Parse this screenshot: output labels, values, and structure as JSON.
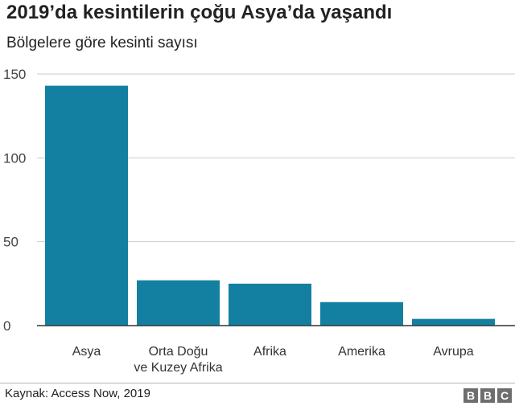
{
  "header": {
    "title": "2019’da kesintilerin çoğu Asya’da yaşandı",
    "subtitle": "Bölgelere göre kesinti sayısı"
  },
  "footer": {
    "source": "Kaynak: Access Now, 2019",
    "logo_letters": [
      "B",
      "B",
      "C"
    ]
  },
  "chart_data": {
    "type": "bar",
    "title": "2019’da kesintilerin çoğu Asya’da yaşandı",
    "subtitle": "Bölgelere göre kesinti sayısı",
    "categories": [
      [
        "Asya"
      ],
      [
        "Orta Doğu",
        "ve Kuzey Afrika"
      ],
      [
        "Afrika"
      ],
      [
        "Amerika"
      ],
      [
        "Avrupa"
      ]
    ],
    "values": [
      143,
      27,
      25,
      14,
      4
    ],
    "ylim": [
      0,
      150
    ],
    "yticks": [
      0,
      50,
      100,
      150
    ],
    "grid": true,
    "bar_color": "#1380a1",
    "grid_color": "#cbcbcb",
    "axis_color": "#333333"
  }
}
